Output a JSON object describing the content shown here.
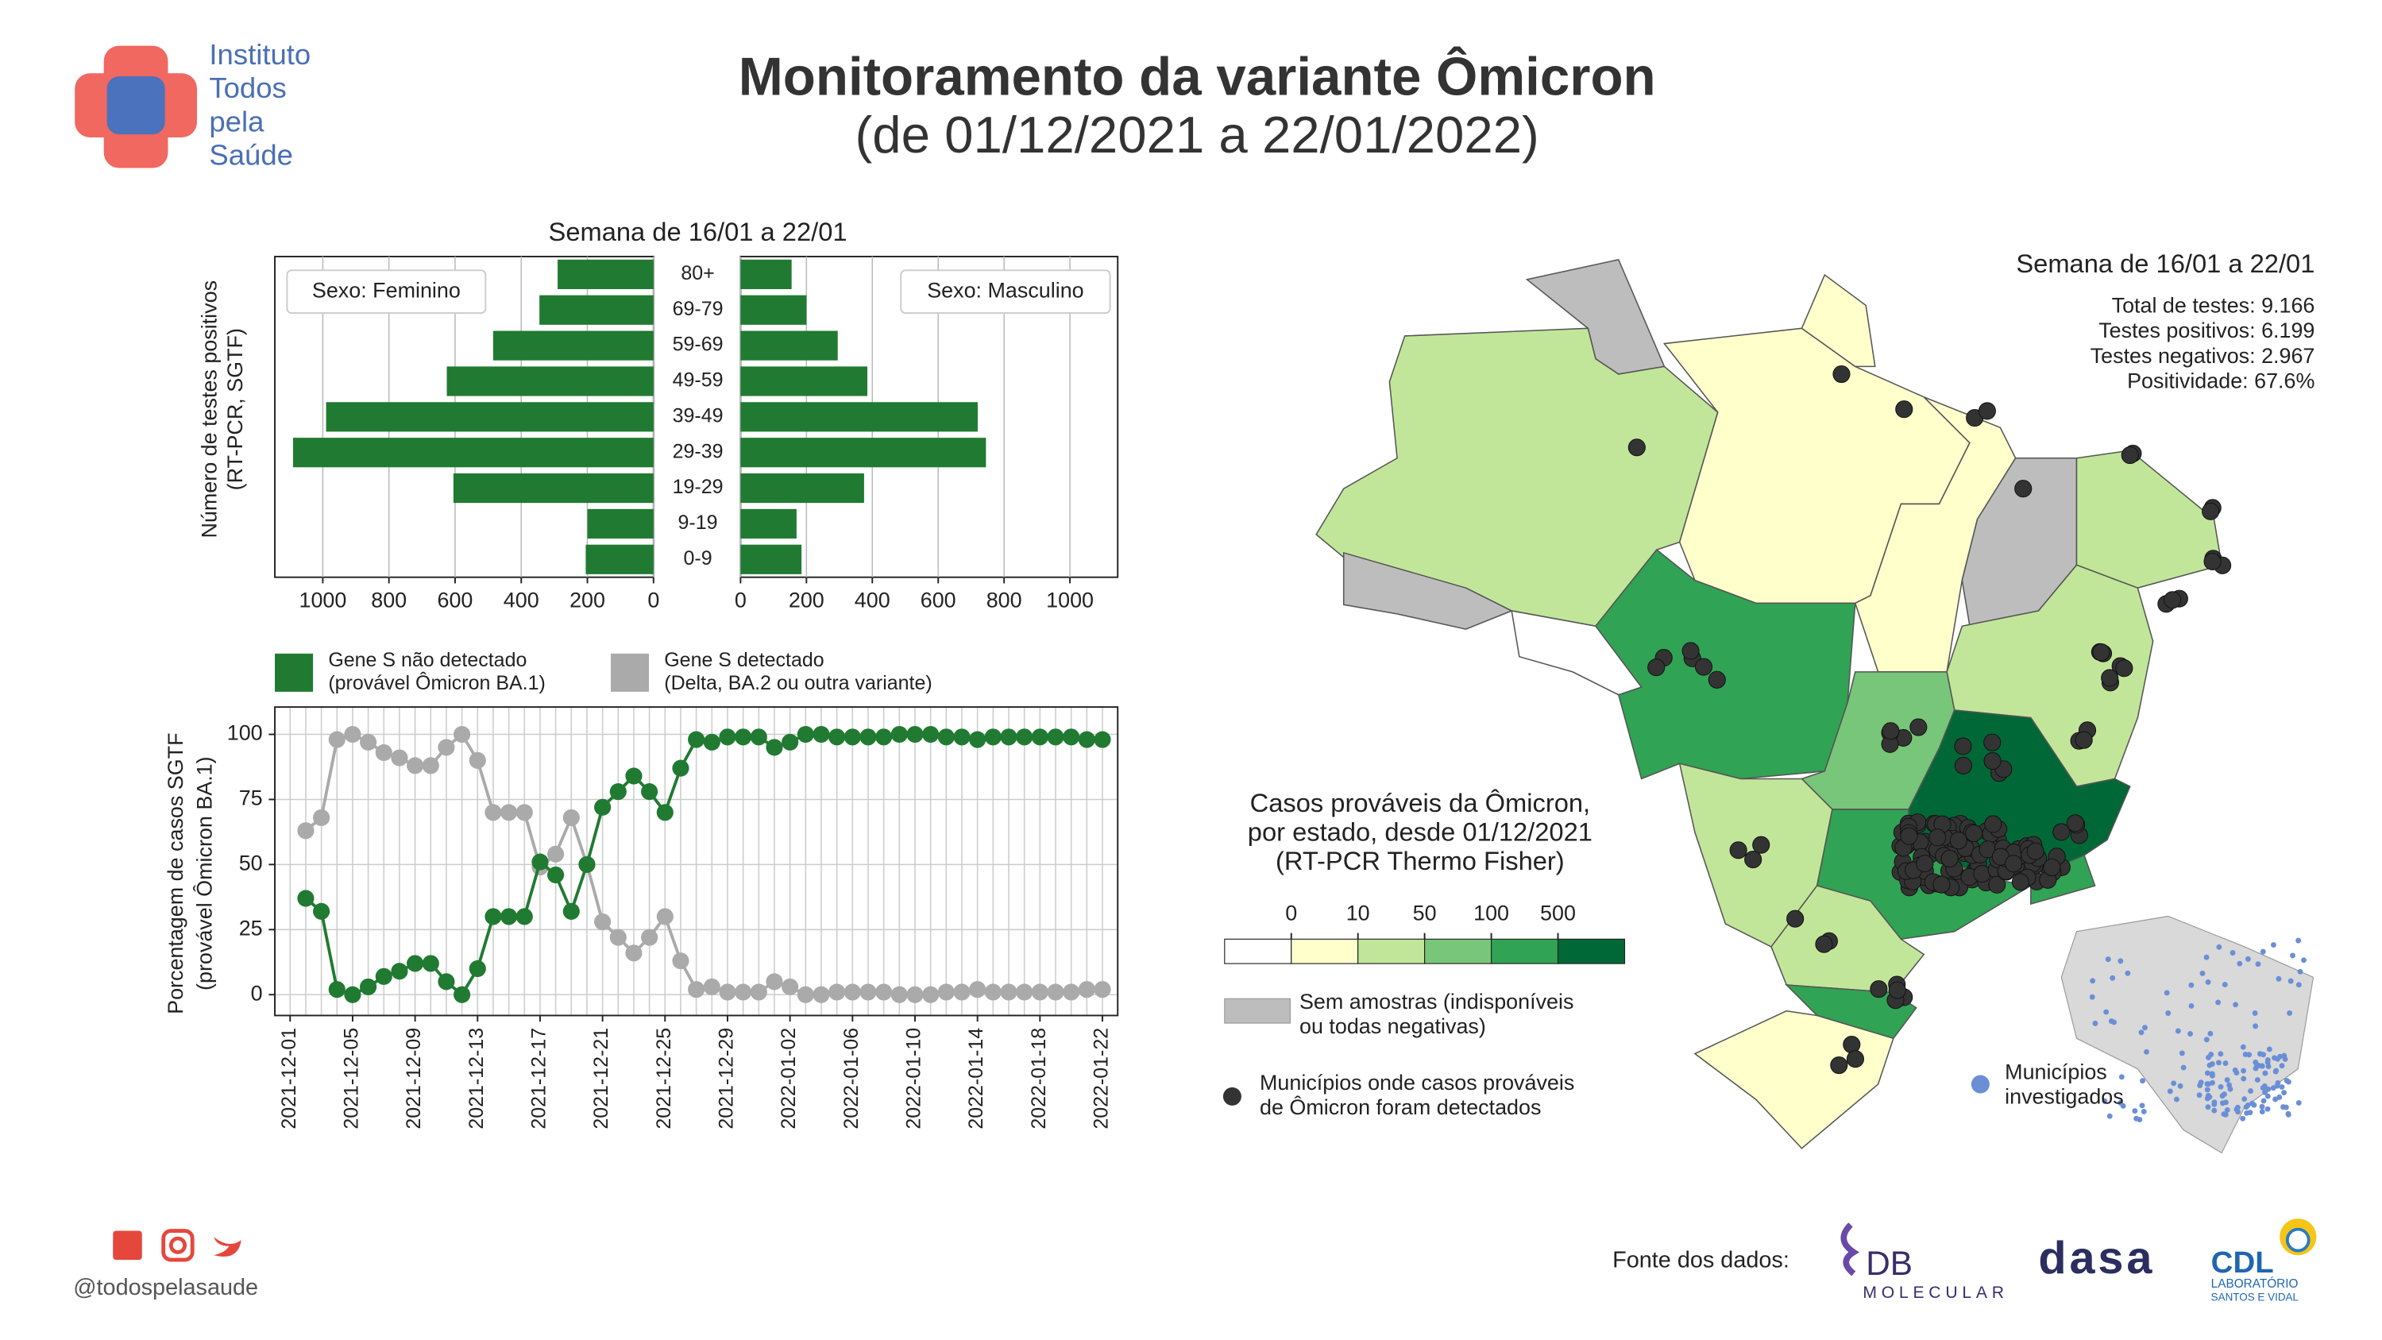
{
  "header": {
    "org_name": [
      "Instituto",
      "Todos",
      "pela",
      "Saúde"
    ],
    "title": "Monitoramento da variante Ômicron",
    "subtitle": "(de 01/12/2021 a 22/01/2022)"
  },
  "chart_data": [
    {
      "type": "bar",
      "orientation": "horizontal",
      "title": "Semana de 16/01 a 22/01",
      "ylabel": [
        "Número de testes positivos",
        "(RT-PCR, SGTF)"
      ],
      "categories": [
        "80+",
        "69-79",
        "59-69",
        "49-59",
        "39-49",
        "29-39",
        "19-29",
        "9-19",
        "0-9"
      ],
      "series": [
        {
          "name": "Sexo: Feminino",
          "color": "#217a31",
          "values": [
            290,
            345,
            485,
            625,
            990,
            1090,
            605,
            200,
            205
          ]
        },
        {
          "name": "Sexo: Masculino",
          "color": "#217a31",
          "values": [
            155,
            200,
            295,
            385,
            720,
            745,
            375,
            170,
            185
          ]
        }
      ],
      "xlim": [
        0,
        1145
      ],
      "xticks": [
        0,
        200,
        400,
        600,
        800,
        1000
      ],
      "grid": true
    },
    {
      "type": "line",
      "ylabel": [
        "Porcentagem de casos SGTF",
        "(provável Ômicron BA.1)"
      ],
      "categories": [
        "2021-12-01",
        null,
        null,
        null,
        "2021-12-05",
        null,
        null,
        null,
        "2021-12-09",
        null,
        null,
        null,
        "2021-12-13",
        null,
        null,
        null,
        "2021-12-17",
        null,
        null,
        null,
        "2021-12-21",
        null,
        null,
        null,
        "2021-12-25",
        null,
        null,
        null,
        "2021-12-29",
        null,
        null,
        null,
        "2022-01-02",
        null,
        null,
        null,
        "2022-01-06",
        null,
        null,
        null,
        "2022-01-10",
        null,
        null,
        null,
        "2022-01-14",
        null,
        null,
        null,
        "2022-01-18",
        null,
        null,
        null,
        "2022-01-22"
      ],
      "series": [
        {
          "name": [
            "Gene S não detectado",
            "(provável Ômicron BA.1)"
          ],
          "color": "#217a31",
          "values": [
            null,
            37,
            32,
            2,
            0,
            3,
            7,
            9,
            12,
            12,
            5,
            0,
            10,
            30,
            30,
            30,
            51,
            46,
            32,
            50,
            72,
            78,
            84,
            78,
            70,
            87,
            98,
            97,
            99,
            99,
            99,
            95,
            97,
            100,
            100,
            99,
            99,
            99,
            99,
            100,
            100,
            100,
            99,
            99,
            98,
            99,
            99,
            99,
            99,
            99,
            99,
            98,
            98
          ]
        },
        {
          "name": [
            "Gene S detectado",
            "(Delta, BA.2 ou outra variante)"
          ],
          "color": "#aaaaaa",
          "values": [
            null,
            63,
            68,
            98,
            100,
            97,
            93,
            91,
            88,
            88,
            95,
            100,
            90,
            70,
            70,
            70,
            49,
            54,
            68,
            50,
            28,
            22,
            16,
            22,
            30,
            13,
            2,
            3,
            1,
            1,
            1,
            5,
            3,
            0,
            0,
            1,
            1,
            1,
            1,
            0,
            0,
            0,
            1,
            1,
            2,
            1,
            1,
            1,
            1,
            1,
            1,
            2,
            2
          ]
        }
      ],
      "ylim": [
        -8,
        110.5
      ],
      "yticks": [
        0,
        25,
        50,
        75,
        100
      ],
      "grid": true,
      "legend": "top"
    }
  ],
  "map": {
    "title": [
      "Casos prováveis da Ômicron,",
      "por estado, desde 01/12/2021",
      "(RT-PCR Thermo Fisher)"
    ],
    "colorbar_ticks": [
      0,
      10,
      50,
      100,
      500
    ],
    "colors": [
      "#ffffff",
      "#ffffcc",
      "#c2e699",
      "#78c679",
      "#31a354",
      "#006837"
    ],
    "no_data_color": "#bdbdbd",
    "no_data_label": [
      "Sem amostras (indisponíveis",
      "ou todas negativas)"
    ],
    "detected_label": [
      "Municípios onde casos prováveis",
      "de Ômicron foram detectados"
    ],
    "investigated_label": [
      "Municípios",
      "investigados"
    ]
  },
  "stats": {
    "title": "Semana de 16/01 a 22/01",
    "lines": [
      "Total de testes: 9.166",
      "Testes positivos: 6.199",
      "Testes negativos: 2.967",
      "Positividade: 67.6%"
    ]
  },
  "footer": {
    "handle": "@todospelasaude",
    "source_label": "Fonte dos dados:",
    "logos": {
      "db": "DB",
      "db_sub": "MOLECULAR",
      "dasa": "dasa",
      "cdl": "CDL",
      "cdl_sub1": "LABORATÓRIO",
      "cdl_sub2": "SANTOS E VIDAL"
    }
  }
}
